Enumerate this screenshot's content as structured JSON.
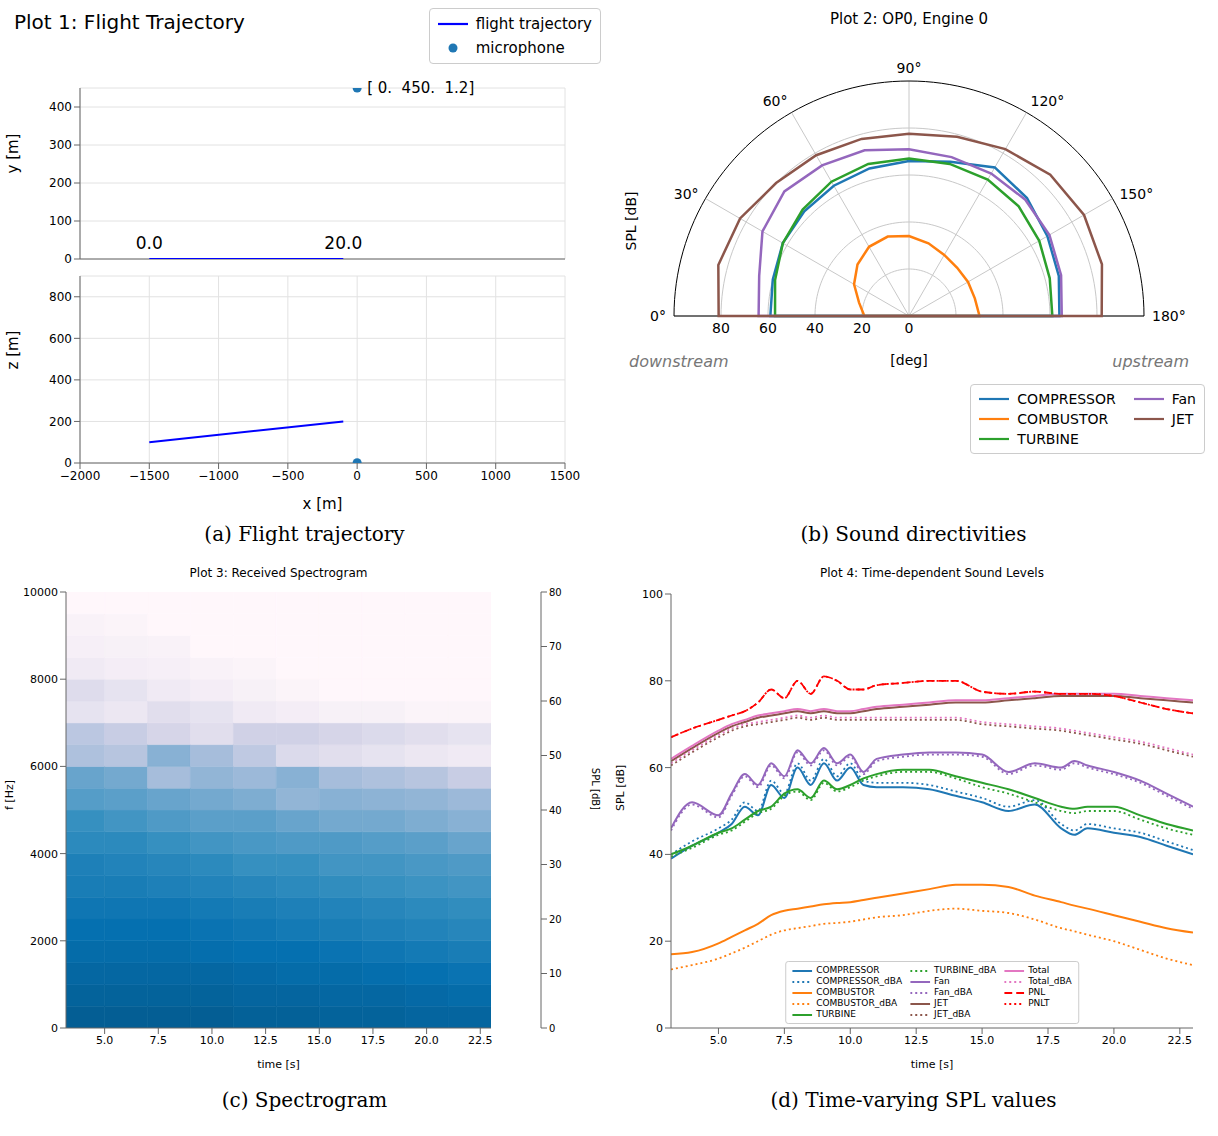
{
  "chart_data": [
    {
      "type": "trajectory",
      "title": "Plot 1: Flight Trajectory",
      "caption": "(a) Flight trajectory",
      "x_label": "x [m]",
      "y_label": "y [m]",
      "z_label": "z [m]",
      "xlim": [
        -2000,
        1500
      ],
      "xticks": [
        {
          "value": -2000,
          "label": "−2000"
        },
        {
          "value": -1500,
          "label": "−1500"
        },
        {
          "value": -1000,
          "label": "−1000"
        },
        {
          "value": -500,
          "label": "−500"
        },
        0,
        500,
        1000,
        1500
      ],
      "ylim": [
        0,
        450
      ],
      "yticks": [
        0,
        100,
        200,
        300,
        400
      ],
      "zlim": [
        0,
        900
      ],
      "zticks": [
        0,
        200,
        400,
        600,
        800
      ],
      "grid": true,
      "legend": "upper right",
      "series": [
        {
          "name": "flight trajectory",
          "type": "line",
          "color": "#0000ff",
          "x": [
            -1500,
            -100
          ],
          "y": [
            0,
            0
          ],
          "z": [
            100,
            200
          ],
          "labels": [
            "0.0",
            "20.0"
          ]
        },
        {
          "name": "microphone",
          "type": "scatter",
          "marker": "circle",
          "color": "#1f77b4",
          "x": [
            0
          ],
          "y": [
            450
          ],
          "z": [
            1.2
          ],
          "labels": [
            "[ 0.  450.  1.2]"
          ]
        }
      ]
    },
    {
      "type": "polar",
      "title": "Plot 2: OP0, Engine 0",
      "caption": "(b) Sound directivities",
      "r_label": "SPL [dB]",
      "theta_label": "[deg]",
      "downstream_label": "downstream",
      "upstream_label": "upstream",
      "theta": [
        0,
        15,
        30,
        45,
        60,
        75,
        90,
        105,
        120,
        135,
        150,
        165,
        180
      ],
      "thetalim": [
        0,
        180
      ],
      "thetaticks": [
        {
          "value": 0,
          "label": "0°"
        },
        {
          "value": 30,
          "label": "30°"
        },
        {
          "value": 60,
          "label": "60°"
        },
        {
          "value": 90,
          "label": "90°"
        },
        {
          "value": 120,
          "label": "120°"
        },
        {
          "value": 150,
          "label": "150°"
        },
        {
          "value": 180,
          "label": "180°"
        }
      ],
      "rlim": [
        0,
        100
      ],
      "rticks": [
        0,
        20,
        40,
        60,
        80
      ],
      "grid": true,
      "legend": "lower right",
      "series": [
        {
          "name": "COMPRESSOR",
          "color": "#1f77b4",
          "values": [
            59,
            60,
            62,
            63,
            64,
            65,
            66,
            68,
            73,
            71,
            68,
            66,
            64
          ]
        },
        {
          "name": "COMBUSTOR",
          "color": "#ff7f0e",
          "values": [
            19,
            22,
            27,
            31,
            34,
            35,
            34,
            32,
            30,
            29,
            29,
            29,
            30
          ]
        },
        {
          "name": "TURBINE",
          "color": "#2ca02c",
          "values": [
            57,
            59,
            62,
            64,
            66,
            67,
            67,
            67,
            67,
            66,
            64,
            62,
            61
          ]
        },
        {
          "name": "Fan",
          "color": "#9467bd",
          "values": [
            64,
            66,
            72,
            75,
            74,
            73,
            71,
            70,
            70,
            70,
            69,
            67,
            65
          ]
        },
        {
          "name": "JET",
          "color": "#8c564b",
          "values": [
            81,
            84,
            83,
            80,
            79,
            78,
            77.5,
            79,
            82,
            85,
            86,
            85,
            82
          ]
        }
      ]
    },
    {
      "type": "heatmap",
      "title": "Plot 3: Received Spectrogram",
      "caption": "(c) Spectrogram",
      "x_label": "time [s]",
      "y_label": "f [Hz]",
      "xlim": [
        3.2,
        23
      ],
      "xticks": [
        {
          "value": 5,
          "label": "5.0"
        },
        7.5,
        {
          "value": 10,
          "label": "10.0"
        },
        12.5,
        {
          "value": 15,
          "label": "15.0"
        },
        17.5,
        {
          "value": 20,
          "label": "20.0"
        },
        22.5
      ],
      "ylim": [
        0,
        10000
      ],
      "yticks": [
        0,
        2000,
        4000,
        6000,
        8000,
        10000
      ],
      "time_edges": [
        3.2,
        5,
        7,
        9,
        11,
        13,
        15,
        17,
        19,
        21,
        23
      ],
      "freq_edges": [
        0,
        500,
        1000,
        1500,
        2000,
        2500,
        3000,
        3500,
        4000,
        4500,
        5000,
        5500,
        6000,
        6500,
        7000,
        7500,
        8000,
        8500,
        9000,
        9500,
        10000
      ],
      "cells": [
        [
          68,
          66,
          64,
          62,
          60,
          58,
          56,
          55,
          52,
          50,
          45,
          42,
          28,
          25,
          12,
          15,
          8,
          5,
          3,
          0
        ],
        [
          68,
          66,
          64,
          62,
          60,
          58,
          56,
          54,
          52,
          48,
          44,
          40,
          26,
          22,
          10,
          12,
          6,
          4,
          2,
          0
        ],
        [
          68,
          66,
          64,
          62,
          60,
          58,
          55,
          53,
          50,
          46,
          42,
          30,
          36,
          18,
          14,
          8,
          5,
          3,
          0,
          0
        ],
        [
          68,
          66,
          64,
          61,
          59,
          57,
          54,
          52,
          48,
          44,
          40,
          34,
          30,
          14,
          12,
          6,
          3,
          0,
          0,
          0
        ],
        [
          67,
          65,
          63,
          60,
          58,
          56,
          53,
          50,
          47,
          44,
          38,
          32,
          24,
          20,
          8,
          4,
          2,
          0,
          0,
          0
        ],
        [
          67,
          65,
          62,
          60,
          57,
          55,
          52,
          50,
          46,
          42,
          34,
          36,
          16,
          20,
          6,
          2,
          0,
          0,
          0,
          0
        ],
        [
          66,
          64,
          62,
          59,
          56,
          54,
          51,
          48,
          46,
          40,
          36,
          30,
          14,
          18,
          4,
          0,
          0,
          0,
          0,
          0
        ],
        [
          66,
          64,
          61,
          58,
          55,
          53,
          50,
          48,
          45,
          40,
          35,
          28,
          12,
          16,
          4,
          0,
          0,
          0,
          0,
          0
        ],
        [
          65,
          63,
          60,
          57,
          54,
          52,
          49,
          47,
          44,
          38,
          34,
          26,
          10,
          14,
          2,
          0,
          0,
          0,
          0,
          0
        ],
        [
          65,
          62,
          59,
          56,
          53,
          51,
          48,
          46,
          42,
          36,
          32,
          22,
          8,
          12,
          2,
          0,
          0,
          0,
          0,
          0
        ]
      ],
      "colorbar": {
        "label": "SPL [dB]",
        "lim": [
          0,
          80
        ],
        "ticks": [
          0,
          10,
          20,
          30,
          40,
          50,
          60,
          70,
          80
        ]
      }
    },
    {
      "type": "line",
      "title": "Plot 4: Time-dependent Sound Levels",
      "caption": "(d) Time-varying SPL values",
      "x_label": "time [s]",
      "y_label": "SPL [dB]",
      "xlim": [
        3.2,
        23
      ],
      "xticks": [
        {
          "value": 5,
          "label": "5.0"
        },
        7.5,
        {
          "value": 10,
          "label": "10.0"
        },
        12.5,
        {
          "value": 15,
          "label": "15.0"
        },
        17.5,
        {
          "value": 20,
          "label": "20.0"
        },
        22.5
      ],
      "ylim": [
        0,
        100
      ],
      "yticks": [
        0,
        20,
        40,
        60,
        80,
        100
      ],
      "legend": "lower center",
      "x": [
        3.2,
        4,
        5,
        5.5,
        6,
        6.5,
        7,
        7.5,
        8,
        8.5,
        9,
        9.5,
        10,
        10.5,
        11,
        12,
        13,
        14,
        15,
        16,
        17,
        18,
        18.5,
        19,
        20,
        21,
        22,
        23
      ],
      "series": [
        {
          "name": "COMPRESSOR",
          "color": "#1f77b4",
          "line_style": "solid",
          "values": [
            39,
            42,
            45,
            47,
            51,
            49,
            56,
            53,
            60,
            56,
            61,
            57,
            60,
            56,
            55.5,
            55.5,
            55,
            53.5,
            52,
            50,
            51.5,
            46,
            44.5,
            46,
            45,
            44,
            42,
            40
          ]
        },
        {
          "name": "COMPRESSOR_dBA",
          "color": "#1f77b4",
          "line_style": "dotted",
          "values": [
            40,
            43,
            46,
            48,
            52,
            50,
            57,
            54,
            61,
            57,
            62,
            58,
            61,
            57,
            56.5,
            56.5,
            56,
            54.5,
            53,
            51,
            52.5,
            47,
            45.5,
            47,
            46,
            45,
            43,
            41
          ]
        },
        {
          "name": "COMBUSTOR",
          "color": "#ff7f0e",
          "line_style": "solid",
          "values": [
            17,
            17.5,
            19.5,
            21,
            22.5,
            24,
            26,
            27,
            27.5,
            28,
            28.5,
            28.8,
            29,
            29.5,
            30,
            31,
            32,
            33,
            33,
            32.5,
            30.5,
            29,
            28.2,
            27.5,
            26,
            24.5,
            23,
            22
          ]
        },
        {
          "name": "COMBUSTOR_dBA",
          "color": "#ff7f0e",
          "line_style": "dotted",
          "values": [
            13.5,
            14.5,
            16,
            17.2,
            18.5,
            20,
            21.5,
            22.5,
            23,
            23.5,
            24,
            24.2,
            24.5,
            25,
            25.5,
            26,
            27,
            27.5,
            27,
            26.5,
            25,
            23,
            22.3,
            21.5,
            20,
            18,
            16,
            14.5
          ]
        },
        {
          "name": "TURBINE",
          "color": "#2ca02c",
          "line_style": "solid",
          "values": [
            40,
            42,
            45,
            46,
            48,
            50,
            51,
            54,
            55,
            53,
            57,
            55,
            56,
            57.5,
            58.5,
            59.5,
            59.5,
            58,
            56.5,
            55,
            53,
            51,
            50.5,
            51,
            51,
            49,
            47,
            45.5
          ]
        },
        {
          "name": "TURBINE_dBA",
          "color": "#2ca02c",
          "line_style": "dotted",
          "values": [
            39.5,
            41.5,
            44.5,
            45.5,
            47.5,
            49.5,
            50.5,
            53.5,
            54.5,
            52.5,
            56.5,
            54.5,
            55.5,
            57,
            58,
            59,
            59,
            57.5,
            55.5,
            54,
            52,
            50,
            49.5,
            50,
            50,
            48,
            46,
            44.5
          ]
        },
        {
          "name": "Fan",
          "color": "#9467bd",
          "line_style": "solid",
          "values": [
            46,
            52,
            49,
            54,
            58.5,
            56,
            61,
            58,
            64,
            61,
            64.5,
            61,
            63,
            59,
            62,
            63,
            63.5,
            63.5,
            63,
            59,
            61,
            60,
            61.5,
            60.5,
            59,
            57,
            54,
            51
          ]
        },
        {
          "name": "Fan_dBA",
          "color": "#9467bd",
          "line_style": "dotted",
          "values": [
            45.5,
            51.5,
            48.5,
            53.5,
            58,
            55.5,
            60.5,
            57.5,
            63.5,
            60.5,
            64,
            60.5,
            62.5,
            58.5,
            61.5,
            62.5,
            63,
            63,
            62.5,
            58.5,
            60.5,
            59.5,
            61,
            60,
            58.5,
            56.5,
            53.5,
            50.5
          ]
        },
        {
          "name": "JET",
          "color": "#8c564b",
          "line_style": "solid",
          "values": [
            61.5,
            64.5,
            68,
            69.5,
            70.5,
            71.5,
            72,
            72.5,
            73,
            72.5,
            73,
            72.5,
            72.5,
            73,
            73.5,
            74,
            74.5,
            75,
            75,
            75.5,
            76,
            76.5,
            76.5,
            76.5,
            76.5,
            76,
            75.5,
            75
          ]
        },
        {
          "name": "JET_dBA",
          "color": "#8c564b",
          "line_style": "dotted",
          "values": [
            60.5,
            63.5,
            67,
            68.5,
            69.5,
            70,
            70.5,
            71,
            71.5,
            71,
            71.5,
            71,
            71,
            71,
            71,
            71,
            71,
            71,
            70,
            69.5,
            69,
            68.5,
            68,
            67.5,
            66.5,
            65.5,
            64,
            62.5
          ]
        },
        {
          "name": "Total",
          "color": "#e377c2",
          "line_style": "solid",
          "values": [
            62,
            65,
            68.5,
            70,
            71,
            72,
            72.5,
            73,
            73.5,
            73,
            73.5,
            73,
            73,
            73.5,
            74,
            74.5,
            75,
            75.5,
            75.5,
            76,
            76.5,
            77,
            77,
            77,
            77,
            76.5,
            76,
            75.5
          ]
        },
        {
          "name": "Total_dBA",
          "color": "#e377c2",
          "line_style": "dotted",
          "values": [
            61,
            64,
            67.5,
            69,
            70,
            70.5,
            71,
            71.5,
            72,
            71.5,
            72,
            71.5,
            71.5,
            71.5,
            71.5,
            71.5,
            71.5,
            71.5,
            70.5,
            70,
            69.5,
            69,
            68.5,
            68,
            67,
            66,
            64.5,
            63
          ]
        },
        {
          "name": "PNL",
          "color": "#ff0000",
          "line_style": "dashed",
          "values": [
            67,
            69,
            71,
            72,
            73,
            75,
            78,
            76,
            80,
            77,
            81,
            80,
            78,
            78,
            79,
            79.5,
            80,
            80,
            77.5,
            77,
            77.5,
            77,
            77,
            77,
            76.5,
            75,
            73.5,
            72.5
          ]
        },
        {
          "name": "PNLT",
          "color": "#ff0000",
          "line_style": "dotted",
          "values": [
            67,
            69,
            71,
            72,
            73,
            75,
            78,
            76,
            80,
            77,
            81,
            80,
            78,
            78,
            79,
            79.5,
            80,
            80,
            77.5,
            77,
            77.5,
            77,
            77,
            77,
            76.5,
            75,
            73.5,
            72.5
          ]
        }
      ]
    }
  ]
}
